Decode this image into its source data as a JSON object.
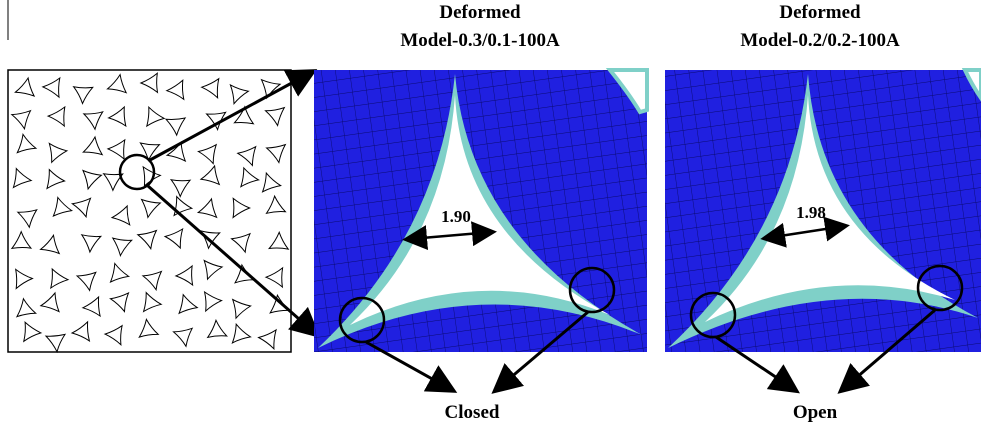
{
  "panels": [
    {
      "title": "Deformed",
      "subtitle": "Model-0.3/0.1-100A",
      "gap": "1.90",
      "state": "Closed"
    },
    {
      "title": "Deformed",
      "subtitle": "Model-0.2/0.2-100A",
      "gap": "1.98",
      "state": "Open"
    }
  ]
}
